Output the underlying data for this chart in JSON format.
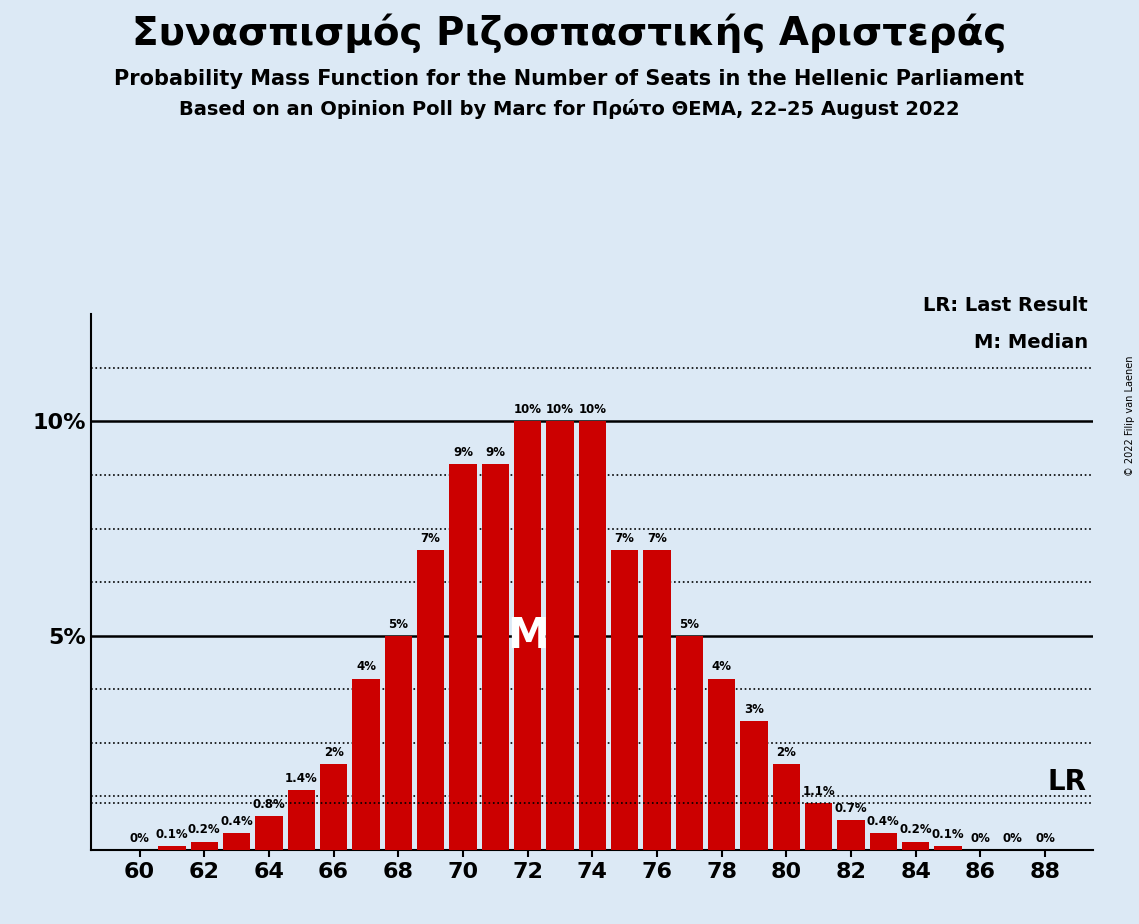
{
  "title1": "Συνασπισμός Ριζοσπαστικής Αριστεράς",
  "title2": "Probability Mass Function for the Number of Seats in the Hellenic Parliament",
  "title3": "Based on an Opinion Poll by Marc for Πρώτο ΘΕΜΑ, 22–25 August 2022",
  "seats": [
    60,
    62,
    64,
    66,
    68,
    70,
    72,
    74,
    76,
    78,
    80,
    82,
    84,
    86,
    88
  ],
  "probs": [
    0.0,
    0.2,
    0.8,
    2.0,
    5.0,
    9.0,
    10.0,
    10.0,
    7.0,
    4.0,
    2.0,
    0.7,
    0.2,
    0.0,
    0.0
  ],
  "probs_all": [
    0.0,
    0.1,
    0.2,
    0.4,
    0.8,
    1.4,
    2.0,
    4.0,
    5.0,
    7.0,
    9.0,
    9.0,
    10.0,
    10.0,
    10.0,
    7.0,
    7.0,
    5.0,
    4.0,
    3.0,
    2.0,
    1.1,
    0.7,
    0.4,
    0.2,
    0.1,
    0.0,
    0.0,
    0.0
  ],
  "seats_all": [
    60,
    61,
    62,
    63,
    64,
    65,
    66,
    67,
    68,
    69,
    70,
    71,
    72,
    73,
    74,
    75,
    76,
    77,
    78,
    79,
    80,
    81,
    82,
    83,
    84,
    85,
    86,
    87,
    88
  ],
  "bar_color": "#cc0000",
  "bg_color": "#dce9f5",
  "median_seat": 72,
  "lr_prob": 1.1,
  "lr_label": "LR",
  "median_label": "M",
  "xlabel_seats": [
    60,
    62,
    64,
    66,
    68,
    70,
    72,
    74,
    76,
    78,
    80,
    82,
    84,
    86,
    88
  ],
  "copyright": "© 2022 Filip van Laenen",
  "legend_lr": "LR: Last Result",
  "legend_m": "M: Median",
  "bar_labels": {
    "60": "0%",
    "61": "0.1%",
    "62": "0.2%",
    "63": "0.4%",
    "64": "0.8%",
    "65": "1.4%",
    "66": "2%",
    "67": "4%",
    "68": "5%",
    "69": "7%",
    "70": "9%",
    "71": "9%",
    "72": "10%",
    "73": "10%",
    "74": "10%",
    "75": "7%",
    "76": "7%",
    "77": "5%",
    "78": "4%",
    "79": "3%",
    "80": "2%",
    "81": "1.1%",
    "82": "0.7%",
    "83": "0.4%",
    "84": "0.2%",
    "85": "0.1%",
    "86": "0%",
    "87": "0%",
    "88": "0%"
  }
}
